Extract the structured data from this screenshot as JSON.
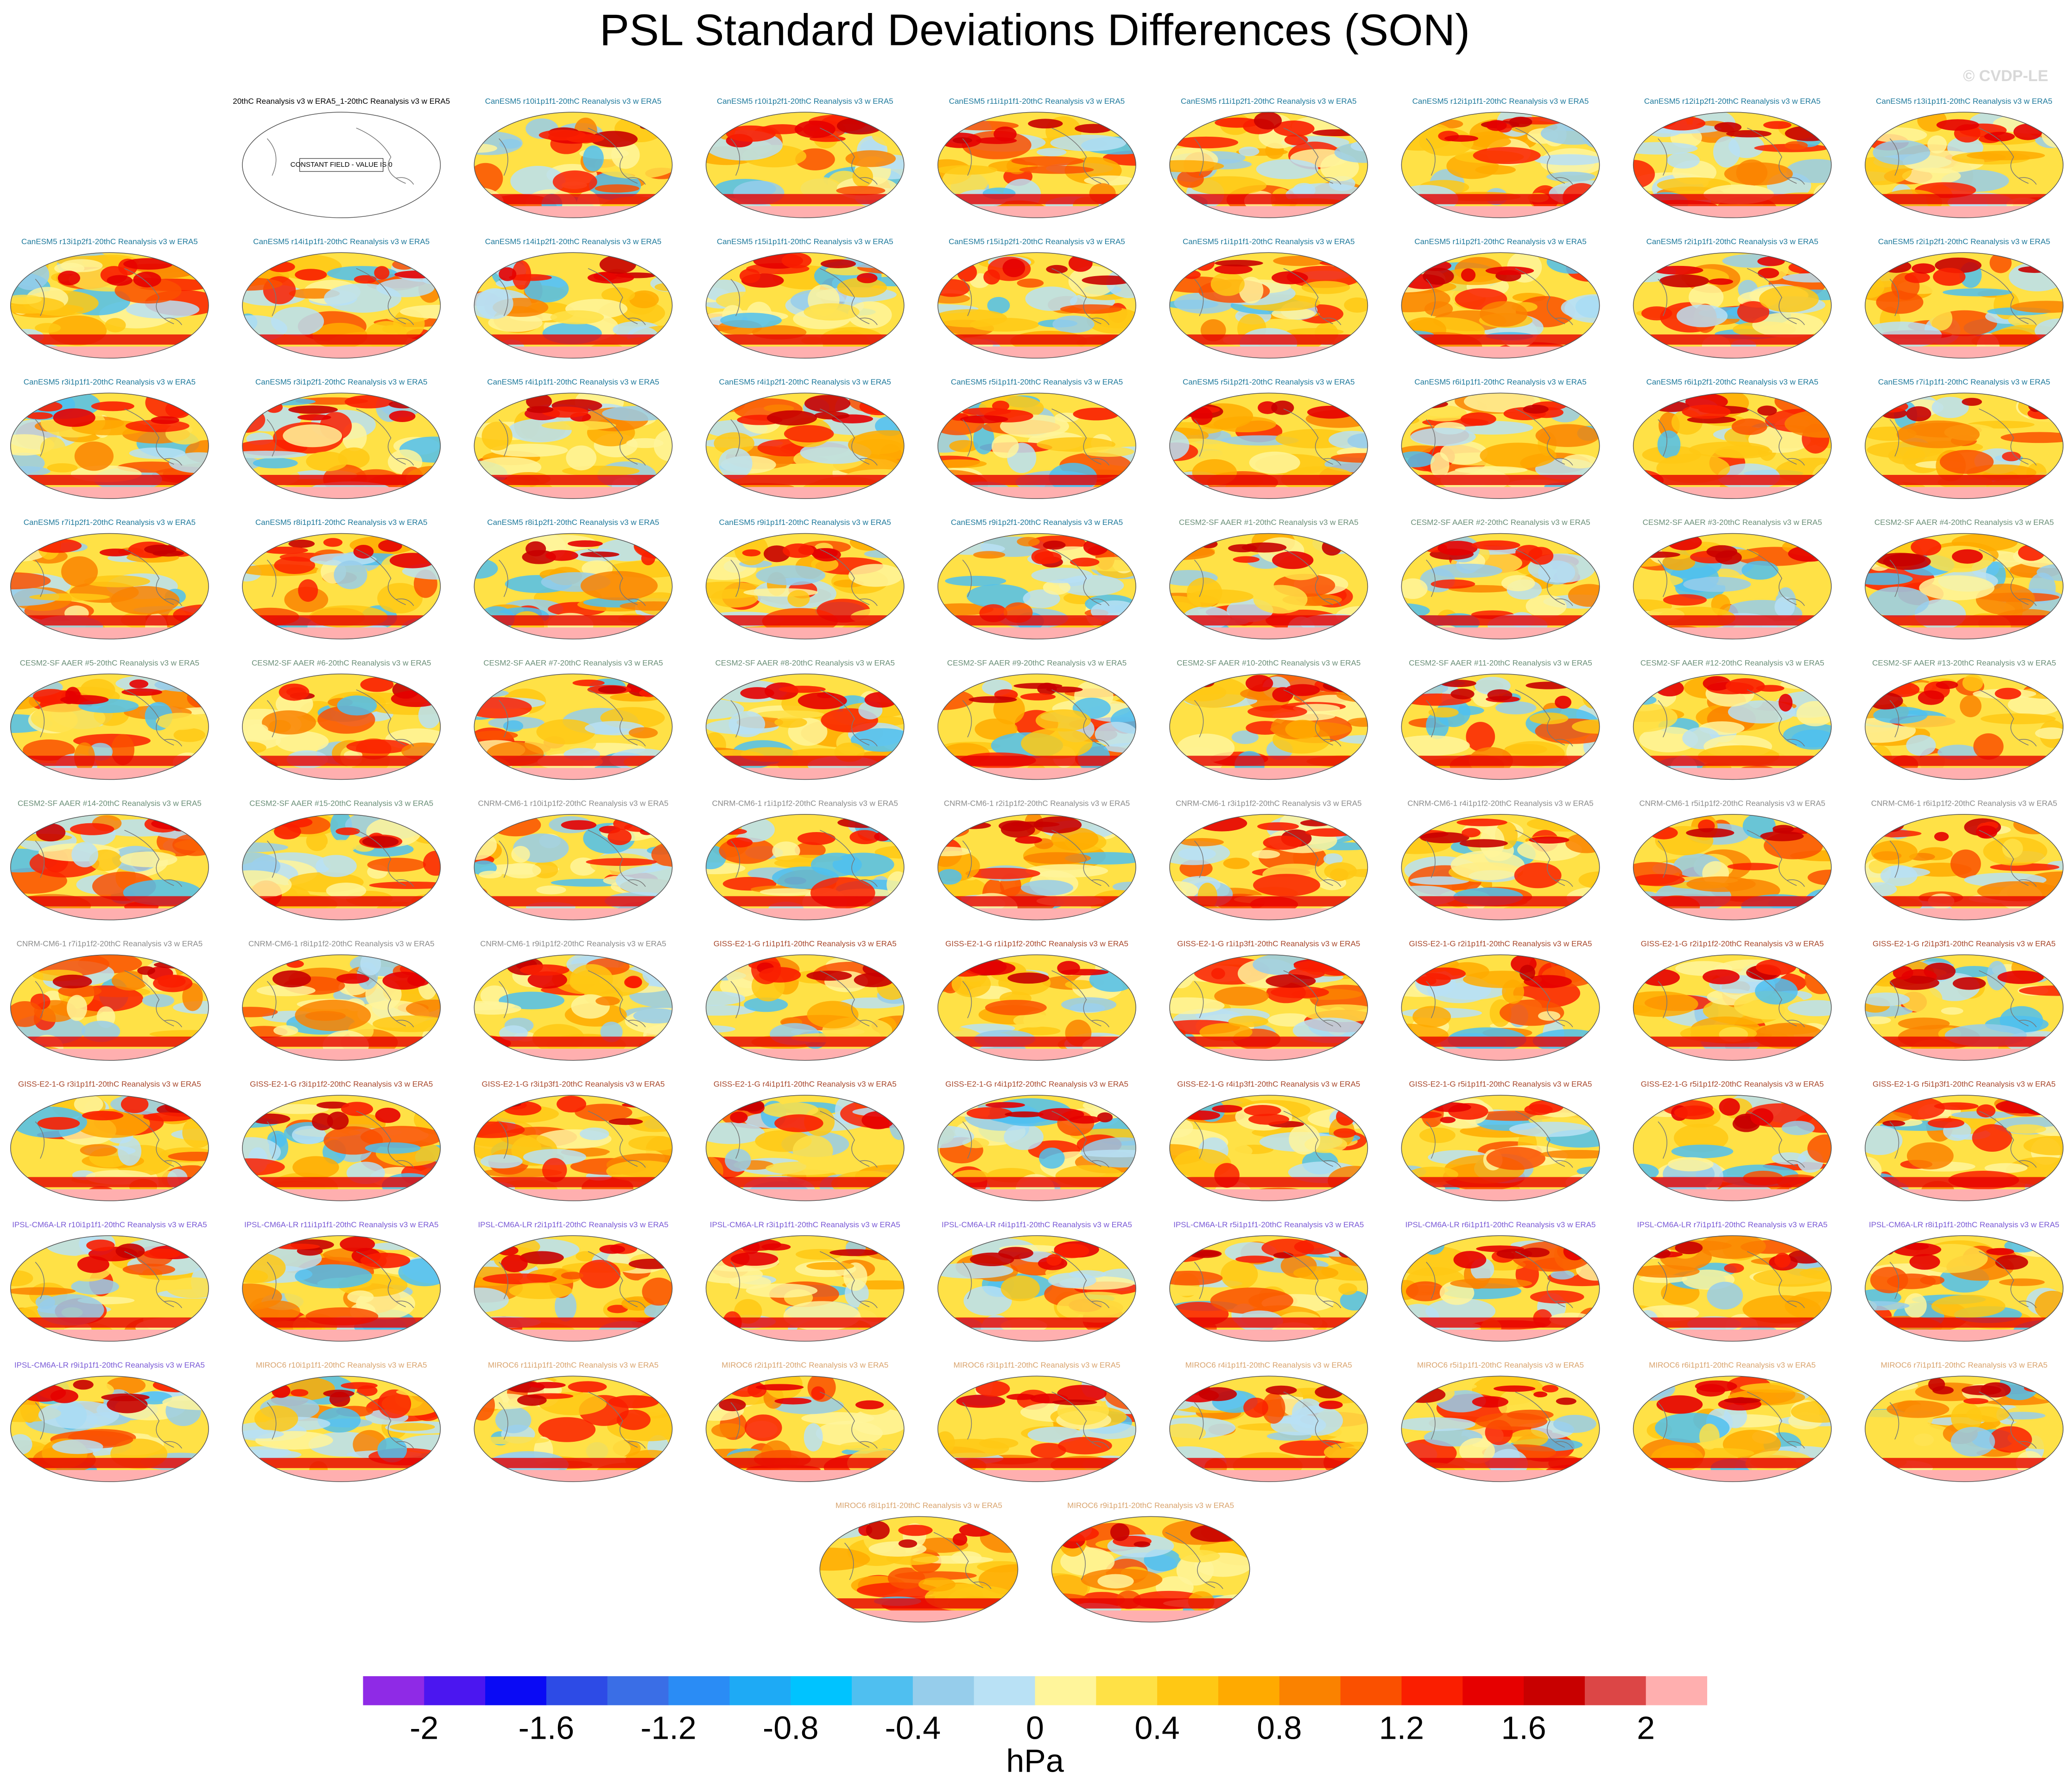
{
  "chart_data": {
    "type": "map-panels",
    "title": "PSL Standard Deviations Differences (SON)",
    "watermark": "© CVDP-LE",
    "panels": [
      {
        "title": "20thC Reanalysis v3 w ERA5_1-20thC Reanalysis v3 w ERA5",
        "color": "#000000",
        "constant_field_label": "CONSTANT FIELD - VALUE IS 0"
      },
      {
        "title": "CanESM5 r10i1p1f1-20thC Reanalysis v3 w ERA5",
        "color": "#1f7a9c"
      },
      {
        "title": "CanESM5 r10i1p2f1-20thC Reanalysis v3 w ERA5",
        "color": "#1f7a9c"
      },
      {
        "title": "CanESM5 r11i1p1f1-20thC Reanalysis v3 w ERA5",
        "color": "#1f7a9c"
      },
      {
        "title": "CanESM5 r11i1p2f1-20thC Reanalysis v3 w ERA5",
        "color": "#1f7a9c"
      },
      {
        "title": "CanESM5 r12i1p1f1-20thC Reanalysis v3 w ERA5",
        "color": "#1f7a9c"
      },
      {
        "title": "CanESM5 r12i1p2f1-20thC Reanalysis v3 w ERA5",
        "color": "#1f7a9c"
      },
      {
        "title": "CanESM5 r13i1p1f1-20thC Reanalysis v3 w ERA5",
        "color": "#1f7a9c"
      },
      {
        "title": "CanESM5 r13i1p2f1-20thC Reanalysis v3 w ERA5",
        "color": "#1f7a9c"
      },
      {
        "title": "CanESM5 r14i1p1f1-20thC Reanalysis v3 w ERA5",
        "color": "#1f7a9c"
      },
      {
        "title": "CanESM5 r14i1p2f1-20thC Reanalysis v3 w ERA5",
        "color": "#1f7a9c"
      },
      {
        "title": "CanESM5 r15i1p1f1-20thC Reanalysis v3 w ERA5",
        "color": "#1f7a9c"
      },
      {
        "title": "CanESM5 r15i1p2f1-20thC Reanalysis v3 w ERA5",
        "color": "#1f7a9c"
      },
      {
        "title": "CanESM5 r1i1p1f1-20thC Reanalysis v3 w ERA5",
        "color": "#1f7a9c"
      },
      {
        "title": "CanESM5 r1i1p2f1-20thC Reanalysis v3 w ERA5",
        "color": "#1f7a9c"
      },
      {
        "title": "CanESM5 r2i1p1f1-20thC Reanalysis v3 w ERA5",
        "color": "#1f7a9c"
      },
      {
        "title": "CanESM5 r2i1p2f1-20thC Reanalysis v3 w ERA5",
        "color": "#1f7a9c"
      },
      {
        "title": "CanESM5 r3i1p1f1-20thC Reanalysis v3 w ERA5",
        "color": "#1f7a9c"
      },
      {
        "title": "CanESM5 r3i1p2f1-20thC Reanalysis v3 w ERA5",
        "color": "#1f7a9c"
      },
      {
        "title": "CanESM5 r4i1p1f1-20thC Reanalysis v3 w ERA5",
        "color": "#1f7a9c"
      },
      {
        "title": "CanESM5 r4i1p2f1-20thC Reanalysis v3 w ERA5",
        "color": "#1f7a9c"
      },
      {
        "title": "CanESM5 r5i1p1f1-20thC Reanalysis v3 w ERA5",
        "color": "#1f7a9c"
      },
      {
        "title": "CanESM5 r5i1p2f1-20thC Reanalysis v3 w ERA5",
        "color": "#1f7a9c"
      },
      {
        "title": "CanESM5 r6i1p1f1-20thC Reanalysis v3 w ERA5",
        "color": "#1f7a9c"
      },
      {
        "title": "CanESM5 r6i1p2f1-20thC Reanalysis v3 w ERA5",
        "color": "#1f7a9c"
      },
      {
        "title": "CanESM5 r7i1p1f1-20thC Reanalysis v3 w ERA5",
        "color": "#1f7a9c"
      },
      {
        "title": "CanESM5 r7i1p2f1-20thC Reanalysis v3 w ERA5",
        "color": "#1f7a9c"
      },
      {
        "title": "CanESM5 r8i1p1f1-20thC Reanalysis v3 w ERA5",
        "color": "#1f7a9c"
      },
      {
        "title": "CanESM5 r8i1p2f1-20thC Reanalysis v3 w ERA5",
        "color": "#1f7a9c"
      },
      {
        "title": "CanESM5 r9i1p1f1-20thC Reanalysis v3 w ERA5",
        "color": "#1f7a9c"
      },
      {
        "title": "CanESM5 r9i1p2f1-20thC Reanalysis v3 w ERA5",
        "color": "#1f7a9c"
      },
      {
        "title": "CESM2-SF AAER #1-20thC Reanalysis v3 w ERA5",
        "color": "#6b8f78"
      },
      {
        "title": "CESM2-SF AAER #2-20thC Reanalysis v3 w ERA5",
        "color": "#6b8f78"
      },
      {
        "title": "CESM2-SF AAER #3-20thC Reanalysis v3 w ERA5",
        "color": "#6b8f78"
      },
      {
        "title": "CESM2-SF AAER #4-20thC Reanalysis v3 w ERA5",
        "color": "#6b8f78"
      },
      {
        "title": "CESM2-SF AAER #5-20thC Reanalysis v3 w ERA5",
        "color": "#6b8f78"
      },
      {
        "title": "CESM2-SF AAER #6-20thC Reanalysis v3 w ERA5",
        "color": "#6b8f78"
      },
      {
        "title": "CESM2-SF AAER #7-20thC Reanalysis v3 w ERA5",
        "color": "#6b8f78"
      },
      {
        "title": "CESM2-SF AAER #8-20thC Reanalysis v3 w ERA5",
        "color": "#6b8f78"
      },
      {
        "title": "CESM2-SF AAER #9-20thC Reanalysis v3 w ERA5",
        "color": "#6b8f78"
      },
      {
        "title": "CESM2-SF AAER #10-20thC Reanalysis v3 w ERA5",
        "color": "#6b8f78"
      },
      {
        "title": "CESM2-SF AAER #11-20thC Reanalysis v3 w ERA5",
        "color": "#6b8f78"
      },
      {
        "title": "CESM2-SF AAER #12-20thC Reanalysis v3 w ERA5",
        "color": "#6b8f78"
      },
      {
        "title": "CESM2-SF AAER #13-20thC Reanalysis v3 w ERA5",
        "color": "#6b8f78"
      },
      {
        "title": "CESM2-SF AAER #14-20thC Reanalysis v3 w ERA5",
        "color": "#6b8f78"
      },
      {
        "title": "CESM2-SF AAER #15-20thC Reanalysis v3 w ERA5",
        "color": "#6b8f78"
      },
      {
        "title": "CNRM-CM6-1 r10i1p1f2-20thC Reanalysis v3 w ERA5",
        "color": "#8c8c8c"
      },
      {
        "title": "CNRM-CM6-1 r1i1p1f2-20thC Reanalysis v3 w ERA5",
        "color": "#8c8c8c"
      },
      {
        "title": "CNRM-CM6-1 r2i1p1f2-20thC Reanalysis v3 w ERA5",
        "color": "#8c8c8c"
      },
      {
        "title": "CNRM-CM6-1 r3i1p1f2-20thC Reanalysis v3 w ERA5",
        "color": "#8c8c8c"
      },
      {
        "title": "CNRM-CM6-1 r4i1p1f2-20thC Reanalysis v3 w ERA5",
        "color": "#8c8c8c"
      },
      {
        "title": "CNRM-CM6-1 r5i1p1f2-20thC Reanalysis v3 w ERA5",
        "color": "#8c8c8c"
      },
      {
        "title": "CNRM-CM6-1 r6i1p1f2-20thC Reanalysis v3 w ERA5",
        "color": "#8c8c8c"
      },
      {
        "title": "CNRM-CM6-1 r7i1p1f2-20thC Reanalysis v3 w ERA5",
        "color": "#8c8c8c"
      },
      {
        "title": "CNRM-CM6-1 r8i1p1f2-20thC Reanalysis v3 w ERA5",
        "color": "#8c8c8c"
      },
      {
        "title": "CNRM-CM6-1 r9i1p1f2-20thC Reanalysis v3 w ERA5",
        "color": "#8c8c8c"
      },
      {
        "title": "GISS-E2-1-G r1i1p1f1-20thC Reanalysis v3 w ERA5",
        "color": "#a8482c"
      },
      {
        "title": "GISS-E2-1-G r1i1p1f2-20thC Reanalysis v3 w ERA5",
        "color": "#a8482c"
      },
      {
        "title": "GISS-E2-1-G r1i1p3f1-20thC Reanalysis v3 w ERA5",
        "color": "#a8482c"
      },
      {
        "title": "GISS-E2-1-G r2i1p1f1-20thC Reanalysis v3 w ERA5",
        "color": "#a8482c"
      },
      {
        "title": "GISS-E2-1-G r2i1p1f2-20thC Reanalysis v3 w ERA5",
        "color": "#a8482c"
      },
      {
        "title": "GISS-E2-1-G r2i1p3f1-20thC Reanalysis v3 w ERA5",
        "color": "#a8482c"
      },
      {
        "title": "GISS-E2-1-G r3i1p1f1-20thC Reanalysis v3 w ERA5",
        "color": "#a8482c"
      },
      {
        "title": "GISS-E2-1-G r3i1p1f2-20thC Reanalysis v3 w ERA5",
        "color": "#a8482c"
      },
      {
        "title": "GISS-E2-1-G r3i1p3f1-20thC Reanalysis v3 w ERA5",
        "color": "#a8482c"
      },
      {
        "title": "GISS-E2-1-G r4i1p1f1-20thC Reanalysis v3 w ERA5",
        "color": "#a8482c"
      },
      {
        "title": "GISS-E2-1-G r4i1p1f2-20thC Reanalysis v3 w ERA5",
        "color": "#a8482c"
      },
      {
        "title": "GISS-E2-1-G r4i1p3f1-20thC Reanalysis v3 w ERA5",
        "color": "#a8482c"
      },
      {
        "title": "GISS-E2-1-G r5i1p1f1-20thC Reanalysis v3 w ERA5",
        "color": "#a8482c"
      },
      {
        "title": "GISS-E2-1-G r5i1p1f2-20thC Reanalysis v3 w ERA5",
        "color": "#a8482c"
      },
      {
        "title": "GISS-E2-1-G r5i1p3f1-20thC Reanalysis v3 w ERA5",
        "color": "#a8482c"
      },
      {
        "title": "IPSL-CM6A-LR r10i1p1f1-20thC Reanalysis v3 w ERA5",
        "color": "#7a5ad6"
      },
      {
        "title": "IPSL-CM6A-LR r11i1p1f1-20thC Reanalysis v3 w ERA5",
        "color": "#7a5ad6"
      },
      {
        "title": "IPSL-CM6A-LR r2i1p1f1-20thC Reanalysis v3 w ERA5",
        "color": "#7a5ad6"
      },
      {
        "title": "IPSL-CM6A-LR r3i1p1f1-20thC Reanalysis v3 w ERA5",
        "color": "#7a5ad6"
      },
      {
        "title": "IPSL-CM6A-LR r4i1p1f1-20thC Reanalysis v3 w ERA5",
        "color": "#7a5ad6"
      },
      {
        "title": "IPSL-CM6A-LR r5i1p1f1-20thC Reanalysis v3 w ERA5",
        "color": "#7a5ad6"
      },
      {
        "title": "IPSL-CM6A-LR r6i1p1f1-20thC Reanalysis v3 w ERA5",
        "color": "#7a5ad6"
      },
      {
        "title": "IPSL-CM6A-LR r7i1p1f1-20thC Reanalysis v3 w ERA5",
        "color": "#7a5ad6"
      },
      {
        "title": "IPSL-CM6A-LR r8i1p1f1-20thC Reanalysis v3 w ERA5",
        "color": "#7a5ad6"
      },
      {
        "title": "IPSL-CM6A-LR r9i1p1f1-20thC Reanalysis v3 w ERA5",
        "color": "#7a5ad6"
      },
      {
        "title": "MIROC6 r10i1p1f1-20thC Reanalysis v3 w ERA5",
        "color": "#d9a46e"
      },
      {
        "title": "MIROC6 r11i1p1f1-20thC Reanalysis v3 w ERA5",
        "color": "#d9a46e"
      },
      {
        "title": "MIROC6 r2i1p1f1-20thC Reanalysis v3 w ERA5",
        "color": "#d9a46e"
      },
      {
        "title": "MIROC6 r3i1p1f1-20thC Reanalysis v3 w ERA5",
        "color": "#d9a46e"
      },
      {
        "title": "MIROC6 r4i1p1f1-20thC Reanalysis v3 w ERA5",
        "color": "#d9a46e"
      },
      {
        "title": "MIROC6 r5i1p1f1-20thC Reanalysis v3 w ERA5",
        "color": "#d9a46e"
      },
      {
        "title": "MIROC6 r6i1p1f1-20thC Reanalysis v3 w ERA5",
        "color": "#d9a46e"
      },
      {
        "title": "MIROC6 r7i1p1f1-20thC Reanalysis v3 w ERA5",
        "color": "#d9a46e"
      },
      {
        "title": "MIROC6 r8i1p1f1-20thC Reanalysis v3 w ERA5",
        "color": "#d9a46e"
      },
      {
        "title": "MIROC6 r9i1p1f1-20thC Reanalysis v3 w ERA5",
        "color": "#d9a46e"
      }
    ],
    "colorbar": {
      "label": "hPa",
      "lim": [
        -2.2,
        2.2
      ],
      "ticks": [
        -2,
        -1.6,
        -1.2,
        -0.8,
        -0.4,
        0,
        0.4,
        0.8,
        1.2,
        1.6,
        2
      ],
      "colors": [
        "#8f2ae6",
        "#4b16f0",
        "#0a0af5",
        "#2d4be6",
        "#3a6ee6",
        "#2a8cf5",
        "#1eaaf5",
        "#00c3ff",
        "#4fbff0",
        "#96cdeb",
        "#b9e1f5",
        "#fff59b",
        "#ffe146",
        "#ffc814",
        "#ffaa00",
        "#fa8200",
        "#fa5000",
        "#fa1e00",
        "#e60000",
        "#c80000",
        "#dc4646",
        "#ffafaf"
      ]
    }
  }
}
